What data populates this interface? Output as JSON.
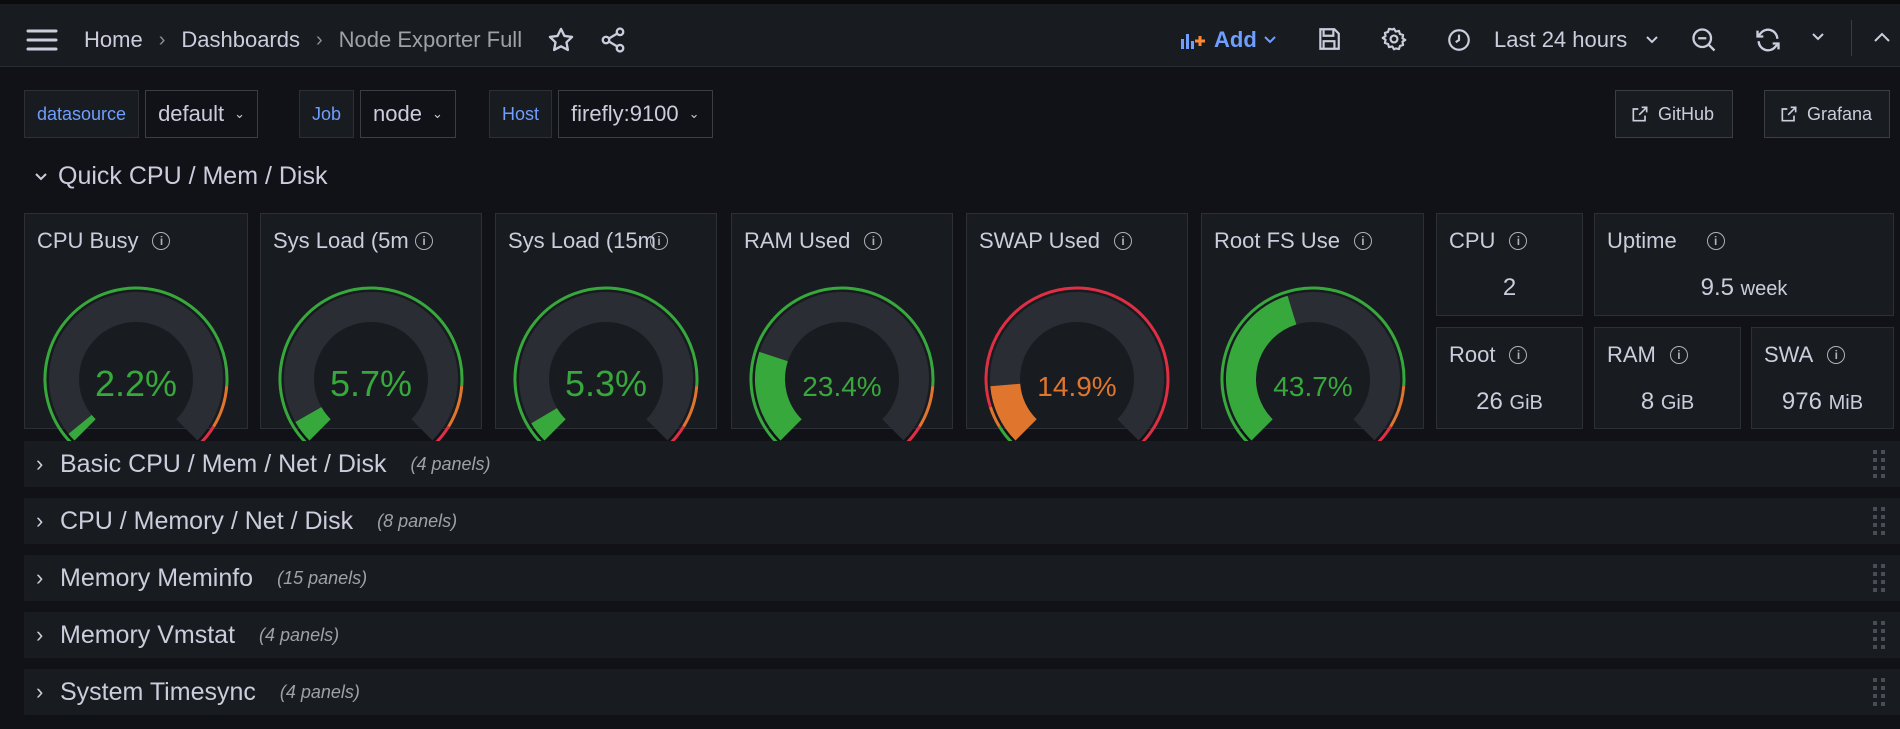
{
  "breadcrumb": {
    "home": "Home",
    "dashboards": "Dashboards",
    "current": "Node Exporter Full"
  },
  "toolbar": {
    "add_label": "Add",
    "time_range": "Last 24 hours"
  },
  "variables": [
    {
      "label": "datasource",
      "value": "default"
    },
    {
      "label": "Job",
      "value": "node"
    },
    {
      "label": "Host",
      "value": "firefly:9100"
    }
  ],
  "links": {
    "github": "GitHub",
    "grafana": "Grafana"
  },
  "main_row": {
    "title": "Quick CPU / Mem / Disk"
  },
  "gauges": [
    {
      "title": "CPU Busy",
      "value": "2.2%",
      "percent": 2.2,
      "color": "#37a93c"
    },
    {
      "title": "Sys Load (5m",
      "value": "5.7%",
      "percent": 5.7,
      "color": "#37a93c"
    },
    {
      "title": "Sys Load (15m",
      "value": "5.3%",
      "percent": 5.3,
      "color": "#37a93c"
    },
    {
      "title": "RAM Used",
      "value": "23.4%",
      "percent": 23.4,
      "color": "#37a93c"
    },
    {
      "title": "SWAP Used",
      "value": "14.9%",
      "percent": 14.9,
      "color": "#e0752d"
    },
    {
      "title": "Root FS Use",
      "value": "43.7%",
      "percent": 43.7,
      "color": "#37a93c"
    }
  ],
  "gauge_thresholds": {
    "green": "#37a93c",
    "orange": "#e0752d",
    "red": "#e02f44",
    "track": "#2a2d33"
  },
  "stats": {
    "cpu": {
      "title": "CPU",
      "value": "2"
    },
    "uptime": {
      "title": "Uptime",
      "value": "9.5",
      "unit": "week"
    },
    "root": {
      "title": "Root",
      "value": "26",
      "unit": "GiB"
    },
    "ram": {
      "title": "RAM",
      "value": "8",
      "unit": "GiB"
    },
    "swap": {
      "title": "SWA",
      "value": "976",
      "unit": "MiB"
    }
  },
  "collapsed_rows": [
    {
      "title": "Basic CPU / Mem / Net / Disk",
      "count": "(4 panels)"
    },
    {
      "title": "CPU / Memory / Net / Disk",
      "count": "(8 panels)"
    },
    {
      "title": "Memory Meminfo",
      "count": "(15 panels)"
    },
    {
      "title": "Memory Vmstat",
      "count": "(4 panels)"
    },
    {
      "title": "System Timesync",
      "count": "(4 panels)"
    }
  ]
}
